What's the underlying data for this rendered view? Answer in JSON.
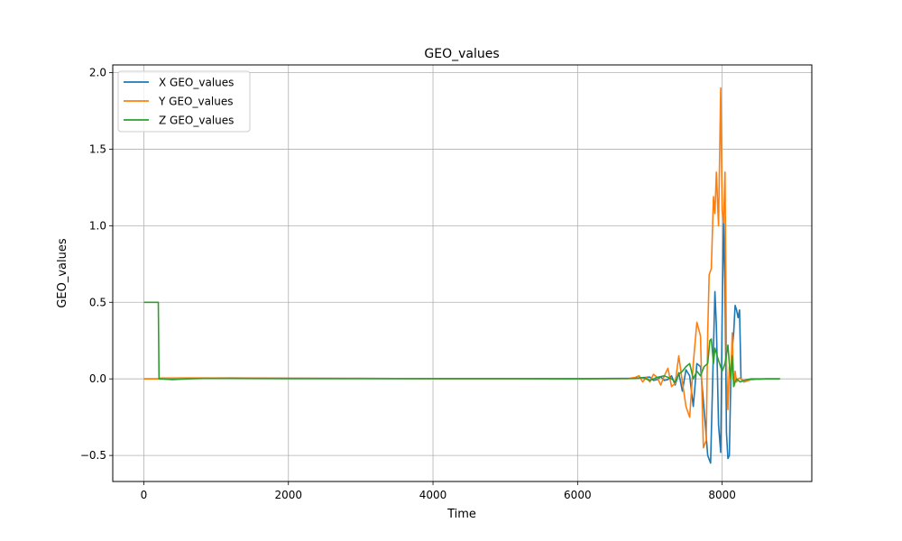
{
  "chart_data": {
    "type": "line",
    "title": "GEO_values",
    "xlabel": "Time",
    "ylabel": "GEO_values",
    "xlim": [
      -430,
      9240
    ],
    "ylim": [
      -0.67,
      2.05
    ],
    "xticks": [
      0,
      2000,
      4000,
      6000,
      8000
    ],
    "yticks": [
      -0.5,
      0.0,
      0.5,
      1.0,
      1.5,
      2.0
    ],
    "xtick_labels": [
      "0",
      "2000",
      "4000",
      "6000",
      "8000"
    ],
    "ytick_labels": [
      "−0.5",
      "0.0",
      "0.5",
      "1.0",
      "1.5",
      "2.0"
    ],
    "grid": true,
    "legend_position": "top-left",
    "series": [
      {
        "name": "X GEO_values",
        "color": "#1f77b4",
        "x": [
          0,
          200,
          210,
          600,
          1200,
          2000,
          3000,
          4000,
          5000,
          6000,
          6800,
          6900,
          7000,
          7050,
          7100,
          7150,
          7200,
          7250,
          7300,
          7350,
          7400,
          7450,
          7500,
          7550,
          7600,
          7650,
          7700,
          7750,
          7800,
          7840,
          7880,
          7900,
          7920,
          7950,
          7980,
          8000,
          8020,
          8040,
          8060,
          8080,
          8100,
          8120,
          8140,
          8160,
          8180,
          8200,
          8220,
          8240,
          8260,
          8300,
          8400,
          8600,
          8800
        ],
        "y": [
          0.0,
          0.0,
          0.0,
          0.004,
          0.006,
          0.004,
          0.003,
          0.002,
          0.002,
          0.002,
          0.004,
          0.008,
          0.012,
          -0.01,
          -0.005,
          0.015,
          -0.01,
          -0.005,
          0.02,
          -0.04,
          0.04,
          -0.08,
          0.06,
          0.02,
          -0.18,
          0.1,
          0.08,
          -0.2,
          -0.5,
          -0.55,
          0.2,
          0.57,
          0.35,
          -0.3,
          -0.48,
          0.4,
          1.05,
          0.6,
          -0.35,
          -0.52,
          -0.5,
          0.0,
          0.2,
          0.3,
          0.48,
          0.45,
          0.4,
          0.45,
          0.0,
          -0.02,
          -0.005,
          0.0,
          0.0
        ]
      },
      {
        "name": "Y GEO_values",
        "color": "#ff7f0e",
        "x": [
          0,
          200,
          210,
          600,
          1200,
          2000,
          3000,
          4000,
          5000,
          6000,
          6700,
          6800,
          6850,
          6900,
          6950,
          7000,
          7050,
          7100,
          7150,
          7200,
          7250,
          7300,
          7350,
          7400,
          7450,
          7500,
          7550,
          7600,
          7650,
          7700,
          7740,
          7780,
          7800,
          7820,
          7850,
          7880,
          7900,
          7920,
          7950,
          7980,
          8000,
          8020,
          8040,
          8060,
          8080,
          8100,
          8120,
          8140,
          8160,
          8180,
          8200,
          8220,
          8240,
          8260,
          8300,
          8400,
          8600,
          8800
        ],
        "y": [
          0.0,
          0.0,
          0.005,
          0.006,
          0.005,
          0.004,
          0.003,
          0.002,
          0.002,
          0.002,
          0.002,
          0.01,
          0.02,
          -0.02,
          0.01,
          -0.02,
          0.03,
          0.01,
          -0.04,
          0.02,
          0.07,
          -0.05,
          -0.03,
          0.15,
          -0.02,
          -0.18,
          -0.25,
          0.1,
          0.37,
          0.28,
          -0.45,
          -0.4,
          0.3,
          0.68,
          0.72,
          1.19,
          1.08,
          1.35,
          1.0,
          1.9,
          1.1,
          1.02,
          1.35,
          0.1,
          -0.2,
          0.08,
          0.0,
          0.3,
          -0.05,
          0.05,
          -0.02,
          0.0,
          0.005,
          0.0,
          -0.02,
          -0.005,
          0.0,
          0.0
        ]
      },
      {
        "name": "Z GEO_values",
        "color": "#2ca02c",
        "x": [
          0,
          100,
          200,
          210,
          400,
          600,
          800,
          1200,
          2000,
          3000,
          4000,
          5000,
          6000,
          6800,
          6900,
          7000,
          7100,
          7200,
          7300,
          7350,
          7400,
          7450,
          7500,
          7550,
          7600,
          7650,
          7700,
          7750,
          7800,
          7830,
          7850,
          7880,
          7900,
          7950,
          8000,
          8040,
          8080,
          8100,
          8120,
          8140,
          8160,
          8180,
          8200,
          8250,
          8300,
          8400,
          8600,
          8800
        ],
        "y": [
          0.5,
          0.5,
          0.5,
          0.0,
          -0.005,
          0.0,
          0.003,
          0.003,
          0.002,
          0.001,
          0.001,
          0.001,
          0.0,
          0.003,
          0.008,
          -0.01,
          0.01,
          0.02,
          0.0,
          -0.02,
          0.03,
          0.05,
          0.08,
          0.1,
          0.0,
          0.05,
          0.02,
          0.08,
          0.1,
          0.25,
          0.26,
          0.1,
          0.2,
          0.12,
          0.05,
          0.1,
          0.22,
          0.1,
          0.0,
          0.15,
          -0.05,
          -0.02,
          0.0,
          -0.02,
          -0.01,
          0.0,
          0.0,
          0.0
        ]
      }
    ]
  }
}
